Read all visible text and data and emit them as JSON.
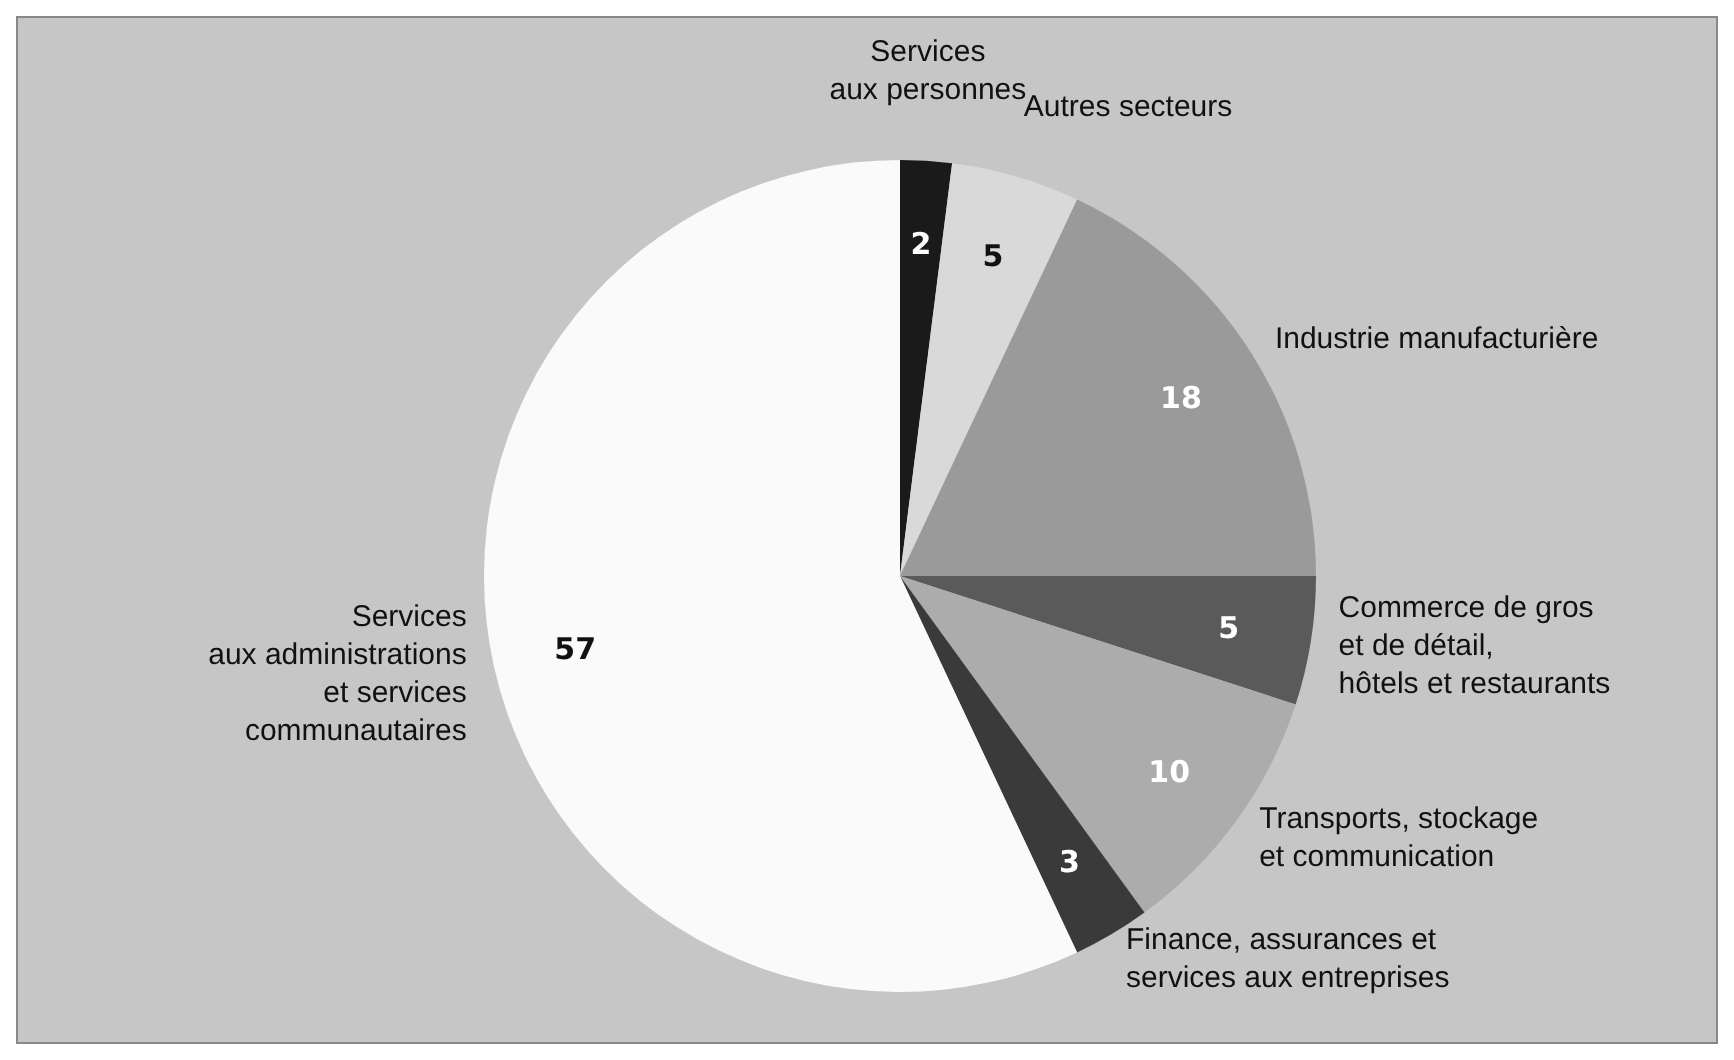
{
  "chart_data": {
    "type": "pie",
    "categories": [
      "Services\naux personnes",
      "Autres secteurs",
      "Industrie manufacturière",
      "Commerce de gros\net de détail,\nhôtels et restaurants",
      "Transports, stockage\net communication",
      "Finance, assurances et\nservices aux  entreprises",
      "Services\naux administrations\net services\ncommunautaires"
    ],
    "values": [
      2,
      5,
      18,
      5,
      10,
      3,
      57
    ],
    "colors": [
      "#1a1a1a",
      "#d9d9d9",
      "#9a9a9a",
      "#5a5a5a",
      "#acacac",
      "#3a3a3a",
      "#fafafa"
    ],
    "data_labels": true
  }
}
